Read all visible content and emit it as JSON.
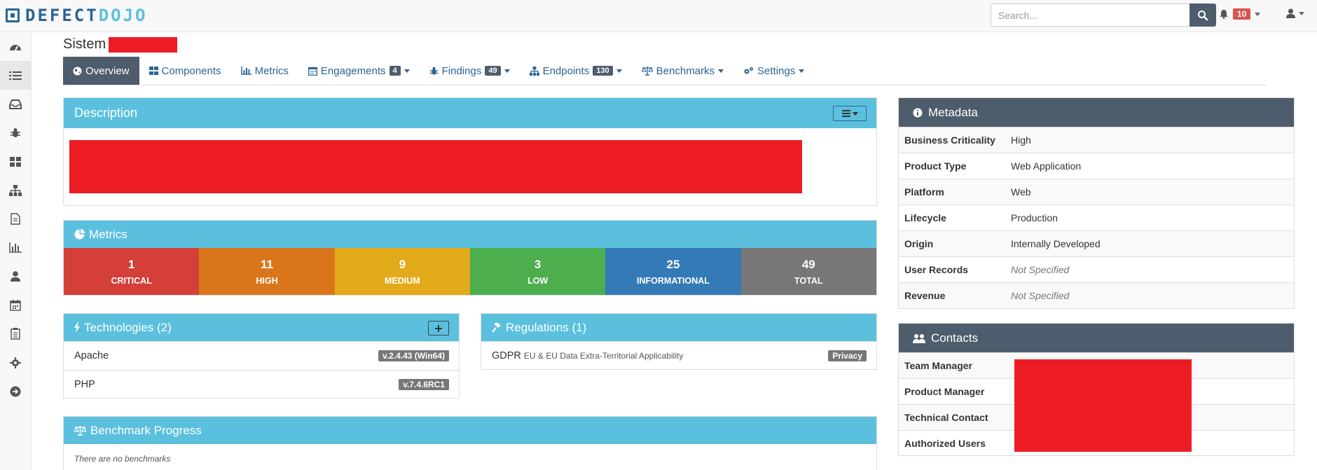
{
  "app": {
    "logo_part1": "DEFECT",
    "logo_part2": "DOJO"
  },
  "search": {
    "placeholder": "Search..."
  },
  "notifications": {
    "count": "10"
  },
  "sidebar": {
    "items": [
      {
        "icon": "dashboard-icon"
      },
      {
        "icon": "list-icon"
      },
      {
        "icon": "inbox-icon"
      },
      {
        "icon": "bug-icon"
      },
      {
        "icon": "grid-icon"
      },
      {
        "icon": "sitemap-icon"
      },
      {
        "icon": "file-icon"
      },
      {
        "icon": "bar-chart-icon"
      },
      {
        "icon": "user-icon"
      },
      {
        "icon": "calendar-icon"
      },
      {
        "icon": "clipboard-icon"
      },
      {
        "icon": "gear-icon"
      },
      {
        "icon": "arrow-right-circle-icon"
      }
    ]
  },
  "page": {
    "title": "Sistem"
  },
  "tabs": [
    {
      "label": "Overview",
      "icon": "globe-icon"
    },
    {
      "label": "Components",
      "icon": "grid-icon"
    },
    {
      "label": "Metrics",
      "icon": "bar-chart-icon"
    },
    {
      "label": "Engagements",
      "icon": "calendar-icon",
      "badge": "4"
    },
    {
      "label": "Findings",
      "icon": "bug-icon",
      "badge": "49"
    },
    {
      "label": "Endpoints",
      "icon": "sitemap-icon",
      "badge": "130"
    },
    {
      "label": "Benchmarks",
      "icon": "balance-icon"
    },
    {
      "label": "Settings",
      "icon": "gears-icon"
    }
  ],
  "description": {
    "title": "Description"
  },
  "metrics": {
    "title": "Metrics",
    "cells": [
      {
        "value": "1",
        "label": "CRITICAL",
        "color": "#d43f3a"
      },
      {
        "value": "11",
        "label": "HIGH",
        "color": "#d9761c"
      },
      {
        "value": "9",
        "label": "MEDIUM",
        "color": "#e2aa1a"
      },
      {
        "value": "3",
        "label": "LOW",
        "color": "#4cae4c"
      },
      {
        "value": "25",
        "label": "INFORMATIONAL",
        "color": "#337ab7"
      },
      {
        "value": "49",
        "label": "TOTAL",
        "color": "#777777"
      }
    ]
  },
  "technologies": {
    "title": "Technologies (2)",
    "items": [
      {
        "name": "Apache",
        "version": "v.2.4.43 (Win64)"
      },
      {
        "name": "PHP",
        "version": "v.7.4.6RC1"
      }
    ]
  },
  "regulations": {
    "title": "Regulations (1)",
    "items": [
      {
        "name": "GDPR",
        "desc": "EU & EU Data Extra-Territorial Applicability",
        "category": "Privacy"
      }
    ]
  },
  "benchmark": {
    "title": "Benchmark Progress",
    "empty": "There are no benchmarks"
  },
  "metadata": {
    "title": "Metadata",
    "rows": [
      {
        "key": "Business Criticality",
        "value": "High"
      },
      {
        "key": "Product Type",
        "value": "Web Application"
      },
      {
        "key": "Platform",
        "value": "Web"
      },
      {
        "key": "Lifecycle",
        "value": "Production"
      },
      {
        "key": "Origin",
        "value": "Internally Developed"
      },
      {
        "key": "User Records",
        "value": "Not Specified"
      },
      {
        "key": "Revenue",
        "value": "Not Specified"
      }
    ]
  },
  "contacts": {
    "title": "Contacts",
    "rows": [
      {
        "key": "Team Manager"
      },
      {
        "key": "Product Manager"
      },
      {
        "key": "Technical Contact"
      },
      {
        "key": "Authorized Users"
      }
    ]
  }
}
